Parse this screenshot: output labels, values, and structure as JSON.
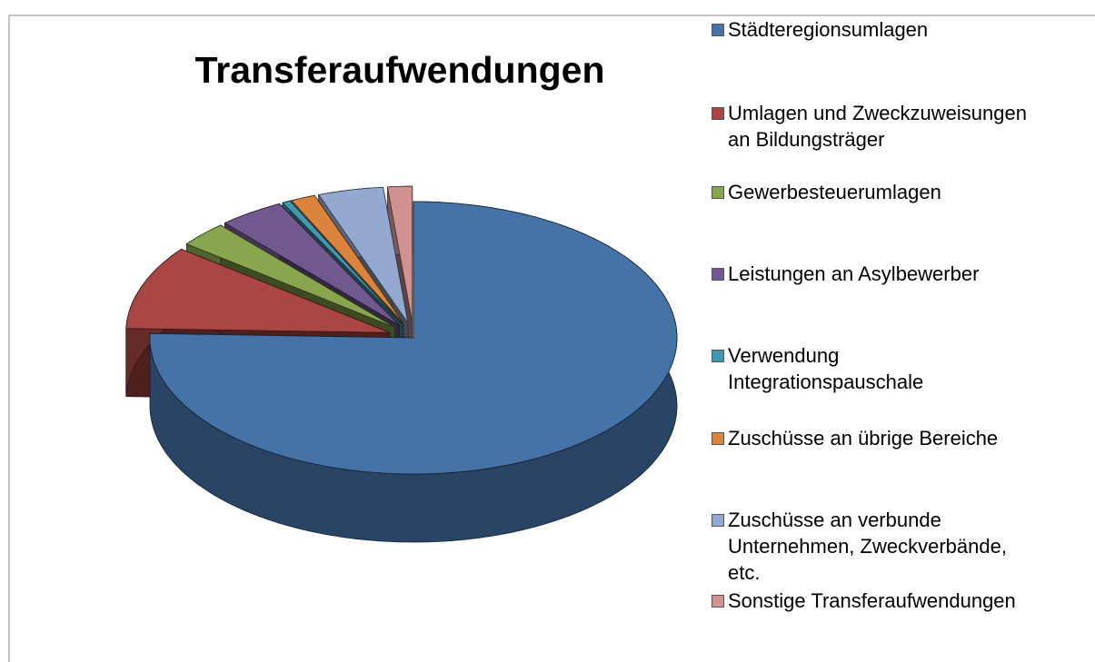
{
  "chart_data": {
    "type": "pie",
    "title": "Transferaufwendungen",
    "categories": [
      "Städteregionsumlagen",
      "Umlagen und Zweckzuweisungen\nan Bildungsträger",
      "Gewerbesteuerumlagen",
      "Leistungen an Asylbewerber",
      "Verwendung\nIntegrationspauschale",
      "Zuschüsse an übrige Bereiche",
      "Zuschüsse an verbunde\nUnternehmen, Zweckverbände,\netc.",
      "Sonstige Transferaufwendungen"
    ],
    "values": [
      75.5,
      10,
      3,
      4,
      0.5,
      1.5,
      4,
      1.5
    ],
    "colors": [
      "#4572a7",
      "#aa4643",
      "#89a54e",
      "#71588f",
      "#4198af",
      "#db843d",
      "#93a9cf",
      "#d19392"
    ]
  }
}
